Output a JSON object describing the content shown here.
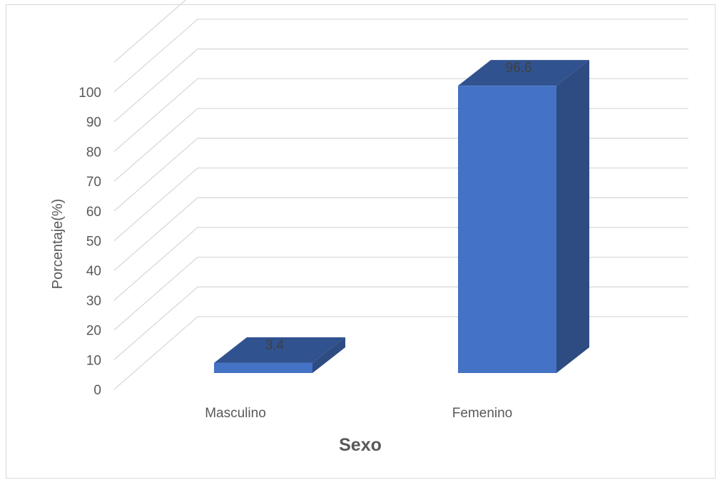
{
  "chart_data": {
    "type": "bar",
    "style": "3d-column",
    "categories": [
      "Masculino",
      "Femenino"
    ],
    "values": [
      3.4,
      96.6
    ],
    "data_labels": [
      "3.4",
      "96.6"
    ],
    "xlabel": "Sexo",
    "ylabel": "Porcentaje(%)",
    "ylim": [
      0,
      100
    ],
    "ytick_step": 10,
    "grid": true,
    "legend": "none",
    "colors": {
      "front": "#4472c4",
      "side": "#2e4b82",
      "top": "#30528f",
      "grid": "#d9d9d9",
      "text": "#595959"
    }
  }
}
